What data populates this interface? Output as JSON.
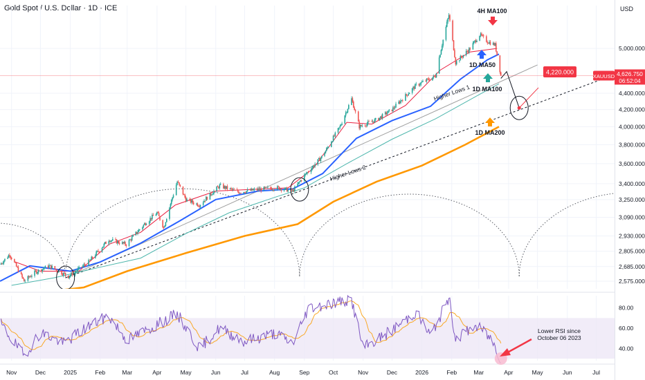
{
  "header": {
    "symbol_title": "Gold Spot / U.S. Dollar",
    "interval": "1D",
    "exchange": "ICE",
    "currency": "USD"
  },
  "colors": {
    "up_candle": "#26a69a",
    "down_candle": "#ef5350",
    "ma50": "#2962ff",
    "ma100": "#4db6ac",
    "ma200": "#ff9800",
    "ma4h": "#e91e3f",
    "rsi": "#7e57c2",
    "rsi_ma": "#f9a825",
    "rsi_band": "#ede7f6",
    "price_tag": "#f23645"
  },
  "chart_data": [
    {
      "type": "candlestick",
      "title": "Gold Spot / U.S. Dollar · 1D · ICE",
      "y_scale": "log",
      "ylim": [
        2520,
        5650
      ],
      "x_domain": [
        "2024-10-20",
        "2026-07-20"
      ],
      "x_ticks": [
        {
          "date": "2024-11-01",
          "label": "Nov"
        },
        {
          "date": "2024-12-01",
          "label": "Dec"
        },
        {
          "date": "2025-01-01",
          "label": "2025"
        },
        {
          "date": "2025-02-01",
          "label": "Feb"
        },
        {
          "date": "2025-03-01",
          "label": "Mar"
        },
        {
          "date": "2025-04-01",
          "label": "Apr"
        },
        {
          "date": "2025-05-01",
          "label": "May"
        },
        {
          "date": "2025-06-01",
          "label": "Jun"
        },
        {
          "date": "2025-07-01",
          "label": "Jul"
        },
        {
          "date": "2025-08-01",
          "label": "Aug"
        },
        {
          "date": "2025-09-01",
          "label": "Sep"
        },
        {
          "date": "2025-10-01",
          "label": "Oct"
        },
        {
          "date": "2025-11-01",
          "label": "Nov"
        },
        {
          "date": "2025-12-01",
          "label": "Dec"
        },
        {
          "date": "2026-01-01",
          "label": "2026"
        },
        {
          "date": "2026-02-01",
          "label": "Feb"
        },
        {
          "date": "2026-03-01",
          "label": "Mar"
        },
        {
          "date": "2026-04-01",
          "label": "Apr"
        },
        {
          "date": "2026-05-01",
          "label": "May"
        },
        {
          "date": "2026-06-01",
          "label": "Jun"
        },
        {
          "date": "2026-07-01",
          "label": "Jul"
        }
      ],
      "y_ticks": [
        {
          "value": 5000,
          "label": "5,000.000"
        },
        {
          "value": 4400,
          "label": "4,400.000"
        },
        {
          "value": 4200,
          "label": "4,200.000"
        },
        {
          "value": 4000,
          "label": "4,000.000"
        },
        {
          "value": 3800,
          "label": "3,800.000"
        },
        {
          "value": 3600,
          "label": "3,600.000"
        },
        {
          "value": 3400,
          "label": "3,400.000"
        },
        {
          "value": 3250,
          "label": "3,250.000"
        },
        {
          "value": 3090,
          "label": "3,090.000"
        },
        {
          "value": 2930,
          "label": "2,930.000"
        },
        {
          "value": 2805,
          "label": "2,805.000"
        },
        {
          "value": 2685,
          "label": "2,685.000"
        },
        {
          "value": 2575,
          "label": "2,575.000"
        }
      ],
      "price_anchors": [
        {
          "date": "2024-10-20",
          "price": 2700
        },
        {
          "date": "2024-10-30",
          "price": 2780
        },
        {
          "date": "2024-11-14",
          "price": 2575
        },
        {
          "date": "2024-11-25",
          "price": 2640
        },
        {
          "date": "2024-12-10",
          "price": 2690
        },
        {
          "date": "2024-12-30",
          "price": 2610
        },
        {
          "date": "2025-01-20",
          "price": 2720
        },
        {
          "date": "2025-02-10",
          "price": 2900
        },
        {
          "date": "2025-02-28",
          "price": 2860
        },
        {
          "date": "2025-03-20",
          "price": 3040
        },
        {
          "date": "2025-04-01",
          "price": 3130
        },
        {
          "date": "2025-04-08",
          "price": 3000
        },
        {
          "date": "2025-04-22",
          "price": 3420
        },
        {
          "date": "2025-05-01",
          "price": 3250
        },
        {
          "date": "2025-05-15",
          "price": 3200
        },
        {
          "date": "2025-06-05",
          "price": 3380
        },
        {
          "date": "2025-06-25",
          "price": 3320
        },
        {
          "date": "2025-07-20",
          "price": 3350
        },
        {
          "date": "2025-08-05",
          "price": 3360
        },
        {
          "date": "2025-08-20",
          "price": 3330
        },
        {
          "date": "2025-09-01",
          "price": 3480
        },
        {
          "date": "2025-09-20",
          "price": 3680
        },
        {
          "date": "2025-10-08",
          "price": 4000
        },
        {
          "date": "2025-10-20",
          "price": 4330
        },
        {
          "date": "2025-10-28",
          "price": 4000
        },
        {
          "date": "2025-11-15",
          "price": 4080
        },
        {
          "date": "2025-12-01",
          "price": 4200
        },
        {
          "date": "2025-12-26",
          "price": 4500
        },
        {
          "date": "2026-01-15",
          "price": 4620
        },
        {
          "date": "2026-01-29",
          "price": 5500
        },
        {
          "date": "2026-02-05",
          "price": 4800
        },
        {
          "date": "2026-02-20",
          "price": 5000
        },
        {
          "date": "2026-03-02",
          "price": 5200
        },
        {
          "date": "2026-03-10",
          "price": 5100
        },
        {
          "date": "2026-03-18",
          "price": 5050
        },
        {
          "date": "2026-03-24",
          "price": 4626.75
        }
      ],
      "moving_averages": [
        {
          "name": "4H MA100",
          "points": [
            [
              "2024-11-05",
              2720
            ],
            [
              "2024-12-01",
              2650
            ],
            [
              "2025-01-10",
              2650
            ],
            [
              "2025-02-10",
              2860
            ],
            [
              "2025-03-15",
              2960
            ],
            [
              "2025-04-20",
              3200
            ],
            [
              "2025-06-01",
              3330
            ],
            [
              "2025-08-15",
              3360
            ],
            [
              "2025-09-10",
              3550
            ],
            [
              "2025-10-15",
              4050
            ],
            [
              "2025-11-10",
              4030
            ],
            [
              "2025-12-15",
              4250
            ],
            [
              "2026-01-20",
              4700
            ],
            [
              "2026-02-20",
              4950
            ],
            [
              "2026-03-20",
              5000
            ]
          ]
        },
        {
          "name": "1D MA50",
          "points": [
            [
              "2024-10-20",
              2575
            ],
            [
              "2024-11-20",
              2690
            ],
            [
              "2025-01-01",
              2650
            ],
            [
              "2025-02-01",
              2720
            ],
            [
              "2025-03-15",
              2870
            ],
            [
              "2025-04-25",
              3060
            ],
            [
              "2025-06-01",
              3250
            ],
            [
              "2025-07-15",
              3330
            ],
            [
              "2025-08-20",
              3350
            ],
            [
              "2025-09-20",
              3500
            ],
            [
              "2025-10-25",
              3870
            ],
            [
              "2025-12-01",
              4070
            ],
            [
              "2026-01-10",
              4240
            ],
            [
              "2026-02-10",
              4580
            ],
            [
              "2026-03-10",
              4840
            ],
            [
              "2026-03-22",
              4920
            ]
          ]
        },
        {
          "name": "1D MA100",
          "points": [
            [
              "2024-11-01",
              2545
            ],
            [
              "2024-12-15",
              2600
            ],
            [
              "2025-02-01",
              2680
            ],
            [
              "2025-03-15",
              2750
            ],
            [
              "2025-05-01",
              2950
            ],
            [
              "2025-06-15",
              3130
            ],
            [
              "2025-08-01",
              3270
            ],
            [
              "2025-09-01",
              3360
            ],
            [
              "2025-10-15",
              3600
            ],
            [
              "2025-12-01",
              3860
            ],
            [
              "2026-01-15",
              4090
            ],
            [
              "2026-03-01",
              4380
            ],
            [
              "2026-03-22",
              4520
            ]
          ]
        },
        {
          "name": "1D MA200",
          "points": [
            [
              "2024-11-20",
              2485
            ],
            [
              "2025-01-15",
              2530
            ],
            [
              "2025-03-01",
              2650
            ],
            [
              "2025-05-01",
              2790
            ],
            [
              "2025-07-01",
              2930
            ],
            [
              "2025-08-25",
              3030
            ],
            [
              "2025-10-01",
              3230
            ],
            [
              "2025-11-15",
              3420
            ],
            [
              "2026-01-01",
              3580
            ],
            [
              "2026-02-15",
              3800
            ],
            [
              "2026-03-22",
              4000
            ]
          ]
        }
      ],
      "trend_lines": [
        {
          "label": "Higher Lows 1",
          "from": [
            "2024-12-27",
            2600
          ],
          "to": [
            "2026-05-01",
            4770
          ]
        },
        {
          "label": "Higher Lows 2",
          "from": [
            "2024-12-27",
            2600
          ],
          "to": [
            "2026-07-20",
            4640
          ]
        }
      ],
      "projection": {
        "points": [
          [
            "2026-03-24",
            4590
          ],
          [
            "2026-03-30",
            4680
          ],
          [
            "2026-04-12",
            4220
          ],
          [
            "2026-05-02",
            4470
          ]
        ],
        "target_label": "4,220.000",
        "target_value": 4220
      },
      "current_price": {
        "symbol": "XAUUSD",
        "price": "4,626.750",
        "countdown": "06:52:04",
        "value": 4626.75
      },
      "annotations": [
        {
          "text": "4H MA100"
        },
        {
          "text": "1D MA50"
        },
        {
          "text": "1D MA100"
        },
        {
          "text": "1D MA200"
        },
        {
          "text": "Higher Lows 1"
        },
        {
          "text": "Higher Lows 2"
        }
      ],
      "cycle_circles": [
        {
          "date": "2024-12-27",
          "price": 2600
        },
        {
          "date": "2025-08-27",
          "price": 3345
        },
        {
          "date": "2026-04-12",
          "price": 4220
        }
      ],
      "cycle_arcs": [
        {
          "from": "2024-08-01",
          "to": "2024-12-27"
        },
        {
          "from": "2024-12-27",
          "to": "2025-08-27"
        },
        {
          "from": "2025-08-27",
          "to": "2026-04-12"
        },
        {
          "from": "2026-04-12",
          "to": "2026-12-01"
        }
      ]
    },
    {
      "type": "line",
      "title": "RSI",
      "ylim": [
        28,
        92
      ],
      "band": [
        30,
        70
      ],
      "y_ticks": [
        {
          "value": 80,
          "label": "80.00"
        },
        {
          "value": 60,
          "label": "60.00"
        },
        {
          "value": 40,
          "label": "40.00"
        }
      ],
      "rsi_anchors": [
        {
          "date": "2024-10-20",
          "value": 65
        },
        {
          "date": "2024-11-05",
          "value": 44
        },
        {
          "date": "2024-11-14",
          "value": 33
        },
        {
          "date": "2024-12-01",
          "value": 56
        },
        {
          "date": "2024-12-25",
          "value": 45
        },
        {
          "date": "2025-01-20",
          "value": 62
        },
        {
          "date": "2025-02-10",
          "value": 72
        },
        {
          "date": "2025-03-01",
          "value": 48
        },
        {
          "date": "2025-04-22",
          "value": 74
        },
        {
          "date": "2025-05-15",
          "value": 40
        },
        {
          "date": "2025-06-05",
          "value": 60
        },
        {
          "date": "2025-07-01",
          "value": 47
        },
        {
          "date": "2025-08-01",
          "value": 55
        },
        {
          "date": "2025-08-20",
          "value": 45
        },
        {
          "date": "2025-09-05",
          "value": 80
        },
        {
          "date": "2025-10-08",
          "value": 86
        },
        {
          "date": "2025-10-20",
          "value": 88
        },
        {
          "date": "2025-11-01",
          "value": 40
        },
        {
          "date": "2025-12-01",
          "value": 58
        },
        {
          "date": "2025-12-26",
          "value": 76
        },
        {
          "date": "2026-01-10",
          "value": 52
        },
        {
          "date": "2026-01-29",
          "value": 90
        },
        {
          "date": "2026-02-05",
          "value": 50
        },
        {
          "date": "2026-02-25",
          "value": 62
        },
        {
          "date": "2026-03-05",
          "value": 58
        },
        {
          "date": "2026-03-15",
          "value": 48
        },
        {
          "date": "2026-03-24",
          "value": 28
        }
      ],
      "annotation": "Lower RSI since\nOctober 06 2023"
    }
  ]
}
